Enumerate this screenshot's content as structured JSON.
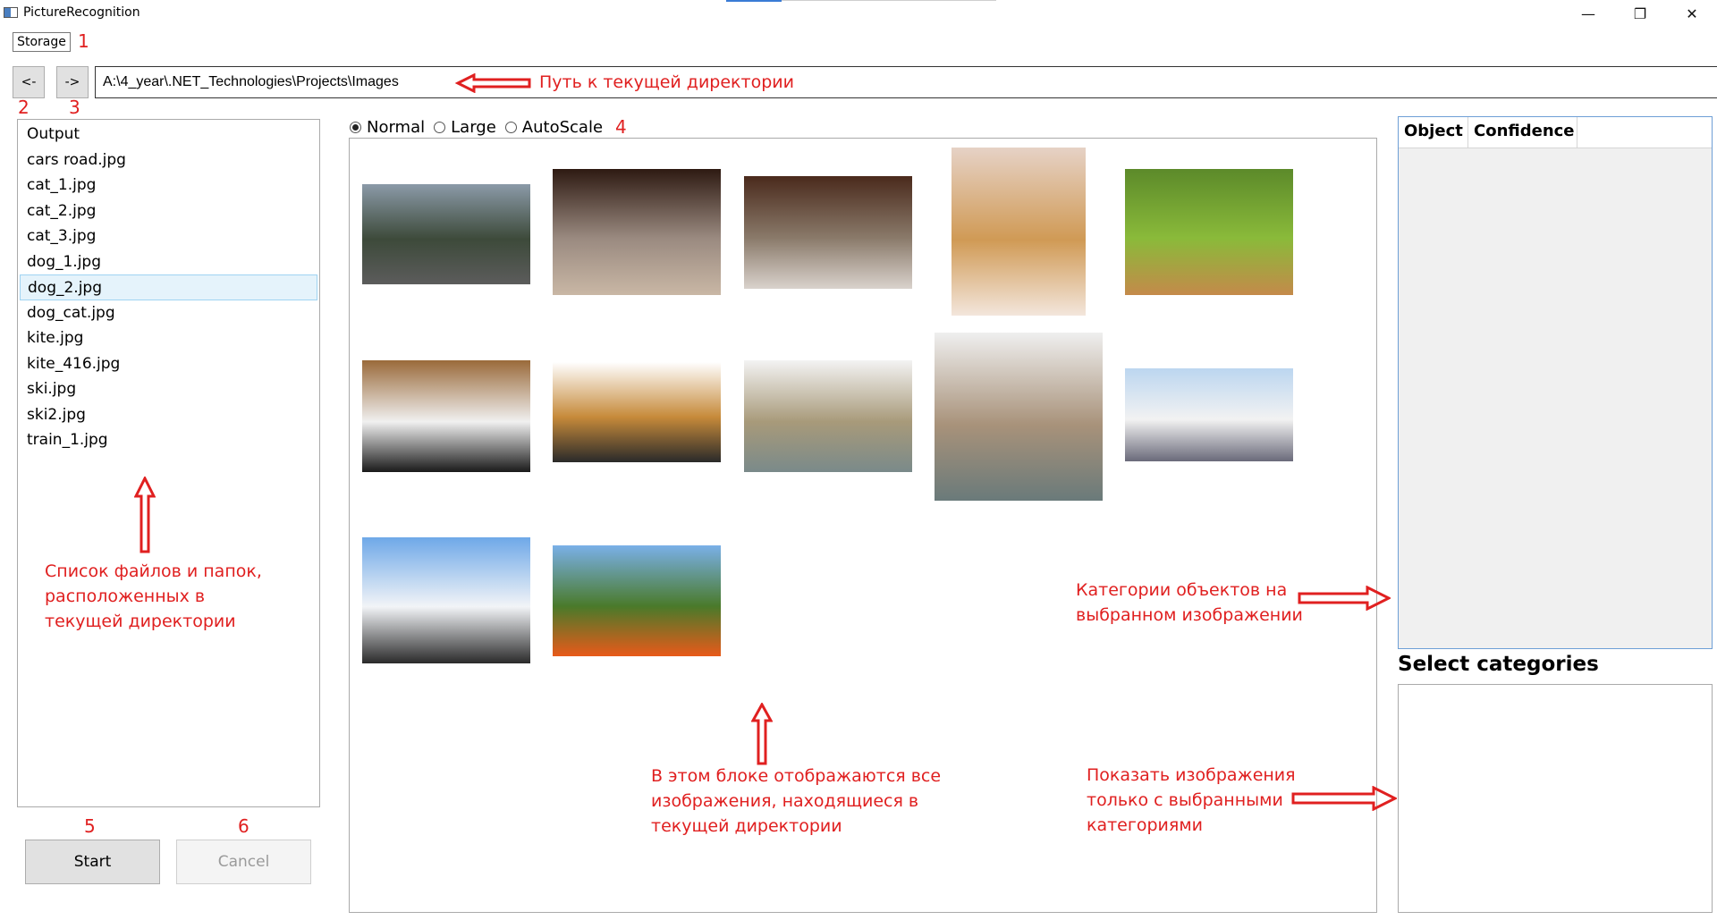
{
  "window": {
    "title": "PictureRecognition",
    "controls": {
      "minimize": "—",
      "restore": "❐",
      "close": "✕"
    }
  },
  "toolbar": {
    "storage_label": "Storage",
    "back_label": "<-",
    "forward_label": "->"
  },
  "path": {
    "value": "A:\\4_year\\.NET_Technologies\\Projects\\Images"
  },
  "files": [
    "Output",
    "cars road.jpg",
    "cat_1.jpg",
    "cat_2.jpg",
    "cat_3.jpg",
    "dog_1.jpg",
    "dog_2.jpg",
    "dog_cat.jpg",
    "kite.jpg",
    "kite_416.jpg",
    "ski.jpg",
    "ski2.jpg",
    "train_1.jpg"
  ],
  "selected_file": "dog_2.jpg",
  "view_modes": {
    "normal": "Normal",
    "large": "Large",
    "autoscale": "AutoScale",
    "selected": "Normal"
  },
  "actions": {
    "start_label": "Start",
    "cancel_label": "Cancel"
  },
  "results": {
    "columns": [
      "Object",
      "Confidence"
    ]
  },
  "categories": {
    "title": "Select categories"
  },
  "annotations": {
    "n1": "1",
    "n2": "2",
    "n3": "3",
    "n4": "4",
    "n5": "5",
    "n6": "6",
    "path_note": "Путь к текущей директории",
    "files_note": [
      "Список файлов и папок,",
      "расположенных в",
      "текущей директории"
    ],
    "gallery_note": [
      "В этом блоке отображаются все",
      "изображения, находящиеся в",
      "текущей директории"
    ],
    "objects_note": [
      "Категории объектов на",
      "выбранном изображении"
    ],
    "filter_note": [
      "Показать изображения",
      "только с выбранными",
      "категориями"
    ]
  },
  "thumbnails": [
    {
      "name": "cars road",
      "palette": [
        "#8b9aa8",
        "#3d4a3a",
        "#5c5c5c"
      ]
    },
    {
      "name": "cat_1",
      "palette": [
        "#2e1a12",
        "#9a8a80",
        "#c9b7a5"
      ]
    },
    {
      "name": "cat_2",
      "palette": [
        "#4a2a1c",
        "#8a7a6a",
        "#d9d2cc"
      ]
    },
    {
      "name": "cat_3",
      "palette": [
        "#e6d2c6",
        "#d09a55",
        "#f3e6dc"
      ]
    },
    {
      "name": "dog_1",
      "palette": [
        "#5c8a2a",
        "#8aba3a",
        "#c48a4a"
      ]
    },
    {
      "name": "dog_2",
      "palette": [
        "#9a6a3a",
        "#f0f0f0",
        "#1a1a1a"
      ]
    },
    {
      "name": "dog_cat",
      "palette": [
        "#ffffff",
        "#c68a3a",
        "#2a2a2a"
      ]
    },
    {
      "name": "kite",
      "palette": [
        "#f3f3f3",
        "#a89a7a",
        "#7a8a8a"
      ]
    },
    {
      "name": "kite_416",
      "palette": [
        "#efefef",
        "#a8927a",
        "#6a7a7a"
      ]
    },
    {
      "name": "ski",
      "palette": [
        "#bcd6f0",
        "#f2f2f2",
        "#6a6a7a"
      ]
    },
    {
      "name": "ski2",
      "palette": [
        "#6ea8e8",
        "#f2f4f7",
        "#2a2a2a"
      ]
    },
    {
      "name": "train_1",
      "palette": [
        "#7ab0e8",
        "#4a7a2a",
        "#e85a1a"
      ]
    }
  ]
}
